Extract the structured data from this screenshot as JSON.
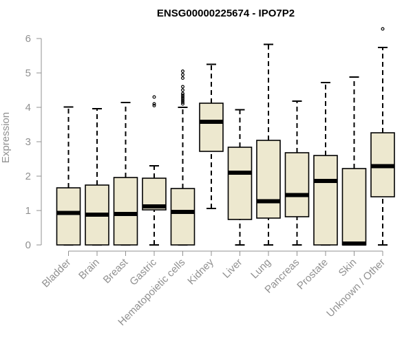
{
  "chart_data": {
    "type": "boxplot",
    "title": "ENSG00000225674 - IPO7P2",
    "xlabel": "",
    "ylabel": "Expression",
    "ylim": [
      0,
      6
    ],
    "yticks": [
      0,
      1,
      2,
      3,
      4,
      5,
      6
    ],
    "box_color": "#ede8cf",
    "categories": [
      "Bladder",
      "Brain",
      "Breast",
      "Gastric",
      "Hematopoietic cells",
      "Kidney",
      "Liver",
      "Lung",
      "Pancreas",
      "Prostate",
      "Skin",
      "Unknown / Other"
    ],
    "boxes": [
      {
        "name": "Bladder",
        "min": 0.0,
        "q1": 0.0,
        "median": 0.93,
        "q3": 1.66,
        "max": 4.01,
        "outliers": []
      },
      {
        "name": "Brain",
        "min": 0.0,
        "q1": 0.0,
        "median": 0.88,
        "q3": 1.74,
        "max": 3.96,
        "outliers": []
      },
      {
        "name": "Breast",
        "min": 0.0,
        "q1": 0.0,
        "median": 0.9,
        "q3": 1.96,
        "max": 4.14,
        "outliers": []
      },
      {
        "name": "Gastric",
        "min": 0.0,
        "q1": 1.02,
        "median": 1.12,
        "q3": 1.94,
        "max": 2.3,
        "outliers": [
          4.05,
          4.1,
          4.3
        ]
      },
      {
        "name": "Hematopoietic cells",
        "min": 0.0,
        "q1": 0.0,
        "median": 0.96,
        "q3": 1.64,
        "max": 4.0,
        "outliers": [
          4.1,
          4.15,
          4.2,
          4.25,
          4.3,
          4.35,
          4.4,
          4.5,
          4.6,
          4.85,
          4.95,
          5.05
        ]
      },
      {
        "name": "Kidney",
        "min": 1.06,
        "q1": 2.72,
        "median": 3.58,
        "q3": 4.12,
        "max": 5.25,
        "outliers": []
      },
      {
        "name": "Liver",
        "min": 0.0,
        "q1": 0.74,
        "median": 2.1,
        "q3": 2.84,
        "max": 3.93,
        "outliers": []
      },
      {
        "name": "Lung",
        "min": 0.0,
        "q1": 0.78,
        "median": 1.27,
        "q3": 3.04,
        "max": 5.83,
        "outliers": []
      },
      {
        "name": "Pancreas",
        "min": 0.0,
        "q1": 0.82,
        "median": 1.45,
        "q3": 2.68,
        "max": 4.18,
        "outliers": []
      },
      {
        "name": "Prostate",
        "min": 0.0,
        "q1": 0.0,
        "median": 1.86,
        "q3": 2.6,
        "max": 4.72,
        "outliers": []
      },
      {
        "name": "Skin",
        "min": 0.0,
        "q1": 0.0,
        "median": 0.02,
        "q3": 2.22,
        "max": 4.88,
        "outliers": []
      },
      {
        "name": "Unknown / Other",
        "min": 0.0,
        "q1": 1.4,
        "median": 2.29,
        "q3": 3.26,
        "max": 5.74,
        "outliers": [
          6.28
        ]
      }
    ]
  }
}
